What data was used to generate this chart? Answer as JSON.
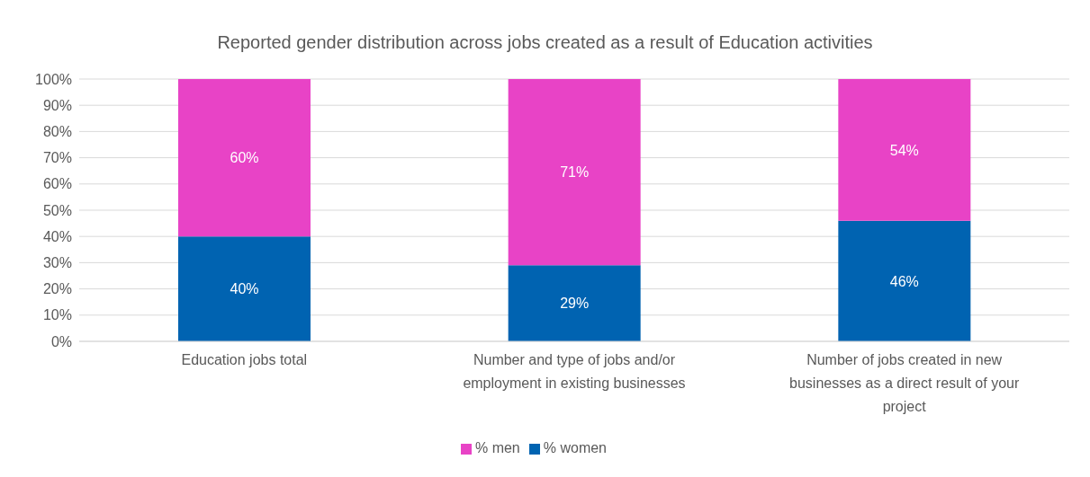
{
  "chart_data": {
    "type": "bar",
    "title": "Reported gender distribution across jobs created as a result of Education activities",
    "categories": [
      "Education jobs total",
      "Number and type of jobs and/or employment in existing businesses",
      "Number of jobs created in new businesses as a direct result of your project"
    ],
    "stacked": true,
    "series": [
      {
        "name": "% women",
        "color": "#0063b1",
        "values": [
          40,
          29,
          46
        ],
        "value_labels": [
          "40%",
          "29%",
          "46%"
        ]
      },
      {
        "name": "% men",
        "color": "#e843c6",
        "values": [
          60,
          71,
          54
        ],
        "value_labels": [
          "60%",
          "71%",
          "54%"
        ]
      }
    ],
    "ylim": [
      0,
      100
    ],
    "yticks": [
      {
        "value": 0,
        "label": "0%"
      },
      {
        "value": 10,
        "label": "10%"
      },
      {
        "value": 20,
        "label": "20%"
      },
      {
        "value": 30,
        "label": "30%"
      },
      {
        "value": 40,
        "label": "40%"
      },
      {
        "value": 50,
        "label": "50%"
      },
      {
        "value": 60,
        "label": "60%"
      },
      {
        "value": 70,
        "label": "70%"
      },
      {
        "value": 80,
        "label": "80%"
      },
      {
        "value": 90,
        "label": "90%"
      },
      {
        "value": 100,
        "label": "100%"
      }
    ],
    "grid": "y",
    "legend": "bottom"
  }
}
